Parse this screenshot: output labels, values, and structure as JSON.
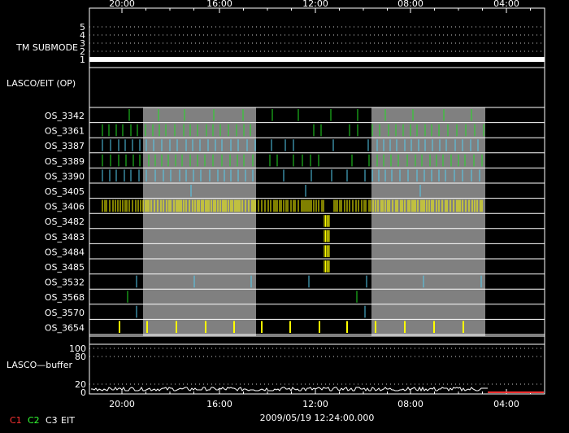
{
  "chart_data": {
    "type": "timeline",
    "time_ticks": [
      "20:00",
      "16:00",
      "12:00",
      "08:00",
      "04:00"
    ],
    "timestamp": "2009/05/19 12:24:00.000",
    "tm_submode": {
      "label": "TM SUBMODE",
      "levels": [
        "5",
        "4",
        "3",
        "2",
        "1"
      ]
    },
    "lasco_section_label": "LASCO/EIT (OP)",
    "rows": [
      {
        "name": "OS_3342",
        "color": "#22dd22",
        "pattern": "sparse"
      },
      {
        "name": "OS_3361",
        "color": "#22dd22",
        "pattern": "dense"
      },
      {
        "name": "OS_3387",
        "color": "#55ccee",
        "pattern": "dense"
      },
      {
        "name": "OS_3389",
        "color": "#22dd22",
        "pattern": "dense"
      },
      {
        "name": "OS_3390",
        "color": "#55ccee",
        "pattern": "dense"
      },
      {
        "name": "OS_3405",
        "color": "#55ccee",
        "pattern": "rare"
      },
      {
        "name": "OS_3406",
        "color": "#ffff00",
        "pattern": "solid"
      },
      {
        "name": "OS_3482",
        "color": "#ffff00",
        "pattern": "burst"
      },
      {
        "name": "OS_3483",
        "color": "#ffff00",
        "pattern": "burst"
      },
      {
        "name": "OS_3484",
        "color": "#ffff00",
        "pattern": "burst"
      },
      {
        "name": "OS_3485",
        "color": "#ffff00",
        "pattern": "burst"
      },
      {
        "name": "OS_3532",
        "color": "#55ccee",
        "pattern": "rare"
      },
      {
        "name": "OS_3568",
        "color": "#22dd22",
        "pattern": "rare"
      },
      {
        "name": "OS_3570",
        "color": "#55ccee",
        "pattern": "rare"
      },
      {
        "name": "OS_3654",
        "color": "#ffff00",
        "pattern": "medium"
      }
    ],
    "buffer": {
      "label": "LASCO—buffer",
      "ticks": [
        "100",
        "80",
        "20",
        "0"
      ]
    },
    "legend": [
      {
        "label": "C1",
        "color": "#ff3333"
      },
      {
        "label": "C2",
        "color": "#33ff33"
      },
      {
        "label": "C3",
        "color": "#ffffff"
      },
      {
        "label": "EIT",
        "color": "#ffffff"
      }
    ],
    "shaded_color": "#808080"
  }
}
